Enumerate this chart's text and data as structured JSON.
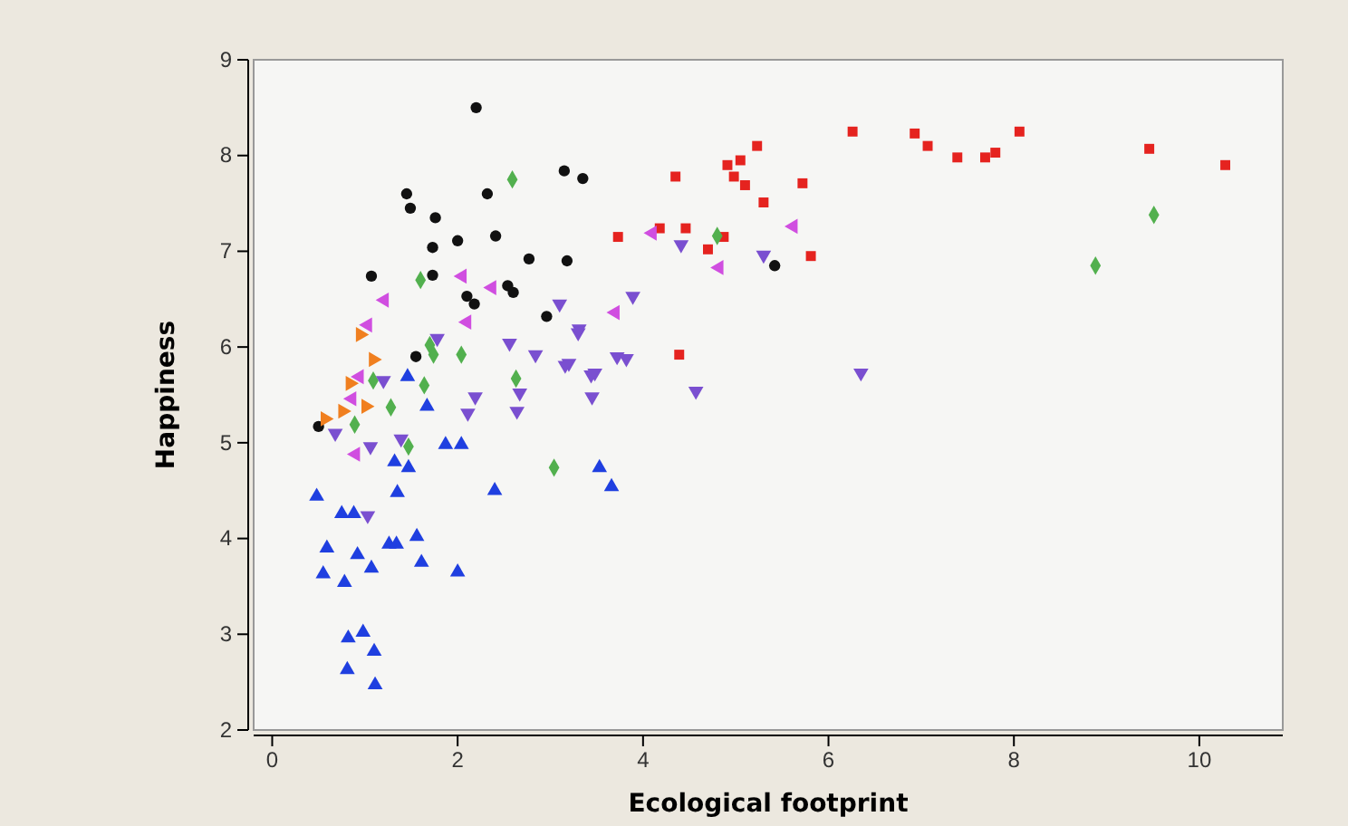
{
  "chart_data": {
    "type": "scatter",
    "xlabel": "Ecological footprint",
    "ylabel": "Happiness",
    "xlim": [
      -0.2,
      10.9
    ],
    "ylim": [
      2,
      9
    ],
    "xticks": [
      0,
      2,
      4,
      6,
      8,
      10
    ],
    "yticks": [
      2,
      3,
      4,
      5,
      6,
      7,
      8,
      9
    ],
    "grid": false,
    "series": [
      {
        "color": "#111111",
        "marker": "circle",
        "x": [
          2.2,
          3.15,
          3.35,
          1.45,
          1.49,
          2.32,
          1.76,
          1.73,
          2.0,
          2.41,
          2.77,
          3.18,
          1.07,
          1.73,
          2.1,
          2.18,
          2.54,
          2.6,
          2.96,
          1.55,
          5.42,
          0.5
        ],
        "values": [
          8.5,
          7.84,
          7.76,
          7.6,
          7.45,
          7.6,
          7.35,
          7.04,
          7.11,
          7.16,
          6.92,
          6.9,
          6.74,
          6.75,
          6.53,
          6.45,
          6.64,
          6.57,
          6.32,
          5.9,
          6.85,
          5.17
        ]
      },
      {
        "color": "#e5231f",
        "marker": "square",
        "x": [
          6.26,
          6.93,
          7.07,
          7.39,
          7.69,
          7.8,
          8.06,
          9.46,
          10.28,
          5.23,
          4.35,
          4.91,
          5.05,
          4.98,
          5.1,
          5.72,
          5.3,
          3.73,
          4.18,
          4.46,
          4.87,
          4.7,
          5.81,
          4.39
        ],
        "values": [
          8.25,
          8.23,
          8.1,
          7.98,
          7.98,
          8.03,
          8.25,
          8.07,
          7.9,
          8.1,
          7.78,
          7.9,
          7.95,
          7.78,
          7.69,
          7.71,
          7.51,
          7.15,
          7.24,
          7.24,
          7.15,
          7.02,
          6.95,
          5.92
        ]
      },
      {
        "color": "#52b04e",
        "marker": "diamond",
        "x": [
          9.51,
          8.88,
          4.8,
          2.59,
          1.6,
          1.7,
          1.74,
          2.04,
          1.64,
          2.63,
          1.28,
          1.09,
          0.89,
          1.47,
          3.04
        ],
        "values": [
          7.38,
          6.85,
          7.16,
          7.75,
          6.7,
          6.02,
          5.92,
          5.92,
          5.6,
          5.67,
          5.37,
          5.65,
          5.19,
          4.96,
          4.74
        ]
      },
      {
        "color": "#1f3fe0",
        "marker": "triangle",
        "x": [
          1.46,
          1.67,
          1.87,
          2.04,
          1.32,
          1.47,
          1.35,
          0.48,
          2.4,
          3.53,
          3.66,
          0.75,
          0.88,
          1.56,
          1.26,
          1.34,
          0.59,
          0.92,
          1.07,
          1.61,
          2.0,
          0.55,
          0.78,
          0.98,
          0.82,
          1.1,
          0.81,
          1.11
        ],
        "values": [
          5.69,
          5.38,
          4.98,
          4.98,
          4.8,
          4.74,
          4.48,
          4.44,
          4.5,
          4.74,
          4.54,
          4.26,
          4.26,
          4.02,
          3.94,
          3.94,
          3.9,
          3.83,
          3.69,
          3.75,
          3.65,
          3.63,
          3.54,
          3.02,
          2.96,
          2.82,
          2.63,
          2.47
        ]
      },
      {
        "color": "#f07f1f",
        "marker": "triangle-right",
        "x": [
          0.95,
          1.09,
          0.84,
          1.01,
          0.76,
          0.57
        ],
        "values": [
          6.13,
          5.87,
          5.62,
          5.38,
          5.33,
          5.25
        ]
      },
      {
        "color": "#d04ee0",
        "marker": "triangle-left",
        "x": [
          1.21,
          1.03,
          2.05,
          2.37,
          2.1,
          0.94,
          0.86,
          3.7,
          4.1,
          5.62,
          4.82,
          0.9
        ],
        "values": [
          6.49,
          6.23,
          6.74,
          6.62,
          6.26,
          5.69,
          5.46,
          6.36,
          7.19,
          7.26,
          6.83,
          4.88
        ]
      },
      {
        "color": "#7a4fd0",
        "marker": "triangle-down",
        "x": [
          4.41,
          5.3,
          3.89,
          3.3,
          3.2,
          3.48,
          3.72,
          3.82,
          4.57,
          3.45,
          6.35,
          3.1,
          3.31,
          2.56,
          2.84,
          3.16,
          3.44,
          1.78,
          1.2,
          2.19,
          2.67,
          2.11,
          2.64,
          1.39,
          1.06,
          0.68,
          1.03
        ],
        "values": [
          7.07,
          6.96,
          6.53,
          6.15,
          5.83,
          5.73,
          5.9,
          5.88,
          5.54,
          5.48,
          5.73,
          6.45,
          6.19,
          6.04,
          5.92,
          5.81,
          5.71,
          6.09,
          5.65,
          5.48,
          5.52,
          5.31,
          5.33,
          5.04,
          4.96,
          5.1,
          4.24
        ]
      }
    ]
  }
}
